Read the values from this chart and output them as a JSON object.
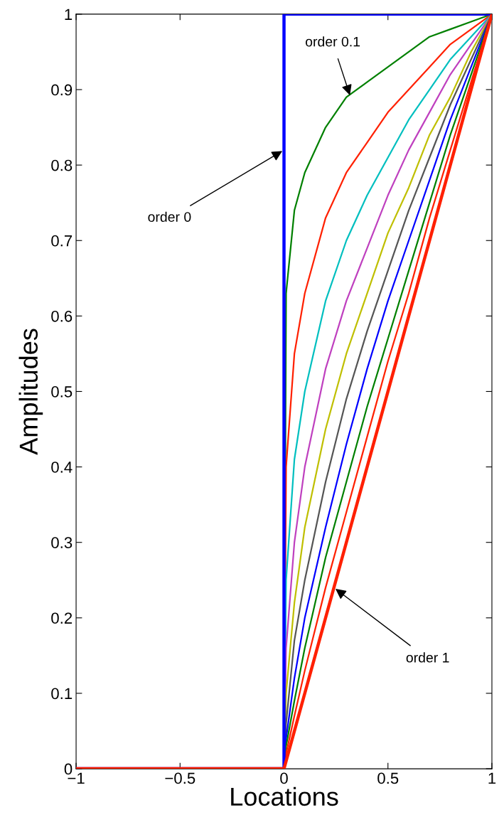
{
  "chart_data": {
    "type": "line",
    "xlabel": "Locations",
    "ylabel": "Amplitudes",
    "series": [
      {
        "color": "#0000ff",
        "x": [
          -1,
          0,
          0,
          1
        ],
        "values": [
          0,
          0,
          1,
          1
        ]
      },
      {
        "color": "#008000",
        "x": [
          -1,
          0,
          0.01,
          0.05,
          0.1,
          0.2,
          0.3,
          0.4,
          0.5,
          0.6,
          0.7,
          0.8,
          0.9,
          1
        ],
        "values": [
          0,
          0,
          0.63,
          0.74,
          0.79,
          0.85,
          0.89,
          0.91,
          0.93,
          0.95,
          0.97,
          0.98,
          0.99,
          1
        ]
      },
      {
        "color": "#ff2000",
        "x": [
          -1,
          0,
          0.01,
          0.05,
          0.1,
          0.2,
          0.3,
          0.4,
          0.5,
          0.6,
          0.7,
          0.8,
          0.9,
          1
        ],
        "values": [
          0,
          0,
          0.4,
          0.55,
          0.63,
          0.73,
          0.79,
          0.83,
          0.87,
          0.9,
          0.93,
          0.96,
          0.98,
          1
        ]
      },
      {
        "color": "#00bfbf",
        "x": [
          -1,
          0,
          0.01,
          0.05,
          0.1,
          0.2,
          0.3,
          0.4,
          0.5,
          0.6,
          0.7,
          0.8,
          0.9,
          1
        ],
        "values": [
          0,
          0,
          0.25,
          0.41,
          0.5,
          0.62,
          0.7,
          0.76,
          0.81,
          0.86,
          0.9,
          0.94,
          0.97,
          1
        ]
      },
      {
        "color": "#bf40bf",
        "x": [
          -1,
          0,
          0.01,
          0.05,
          0.1,
          0.2,
          0.3,
          0.4,
          0.5,
          0.6,
          0.7,
          0.8,
          0.9,
          1
        ],
        "values": [
          0,
          0,
          0.16,
          0.3,
          0.4,
          0.53,
          0.62,
          0.69,
          0.76,
          0.82,
          0.87,
          0.92,
          0.96,
          1
        ]
      },
      {
        "color": "#bfbf00",
        "x": [
          -1,
          0,
          0.01,
          0.05,
          0.1,
          0.2,
          0.3,
          0.4,
          0.5,
          0.6,
          0.7,
          0.8,
          0.9,
          1
        ],
        "values": [
          0,
          0,
          0.1,
          0.22,
          0.32,
          0.45,
          0.55,
          0.63,
          0.71,
          0.77,
          0.84,
          0.89,
          0.95,
          1
        ]
      },
      {
        "color": "#555555",
        "x": [
          -1,
          0,
          0.01,
          0.05,
          0.1,
          0.2,
          0.3,
          0.4,
          0.5,
          0.6,
          0.7,
          0.8,
          0.9,
          1
        ],
        "values": [
          0,
          0,
          0.06,
          0.17,
          0.25,
          0.38,
          0.49,
          0.58,
          0.66,
          0.74,
          0.81,
          0.88,
          0.94,
          1
        ]
      },
      {
        "color": "#0000ff",
        "x": [
          -1,
          0,
          0.01,
          0.05,
          0.1,
          0.2,
          0.3,
          0.4,
          0.5,
          0.6,
          0.7,
          0.8,
          0.9,
          1
        ],
        "values": [
          0,
          0,
          0.04,
          0.12,
          0.2,
          0.32,
          0.43,
          0.53,
          0.62,
          0.7,
          0.78,
          0.86,
          0.93,
          1
        ]
      },
      {
        "color": "#008000",
        "x": [
          -1,
          0,
          0.01,
          0.05,
          0.1,
          0.2,
          0.3,
          0.4,
          0.5,
          0.6,
          0.7,
          0.8,
          0.9,
          1
        ],
        "values": [
          0,
          0,
          0.03,
          0.09,
          0.16,
          0.28,
          0.38,
          0.48,
          0.57,
          0.66,
          0.75,
          0.84,
          0.92,
          1
        ]
      },
      {
        "color": "#ff2000",
        "x": [
          -1,
          0,
          0.01,
          0.05,
          0.1,
          0.2,
          0.3,
          0.4,
          0.5,
          0.6,
          0.7,
          0.8,
          0.9,
          1
        ],
        "values": [
          0,
          0,
          0.02,
          0.07,
          0.13,
          0.24,
          0.34,
          0.44,
          0.54,
          0.63,
          0.73,
          0.82,
          0.91,
          1
        ]
      },
      {
        "color": "#ff2000",
        "x": [
          -1,
          0,
          1
        ],
        "values": [
          0,
          0,
          1
        ]
      }
    ],
    "annotations": [
      {
        "text": "order 0.1",
        "x": 0.32,
        "y": 0.89
      },
      {
        "text": "order 0",
        "x": 0,
        "y": 0.82
      },
      {
        "text": "order 1",
        "x": 0.24,
        "y": 0.24
      }
    ],
    "xlim": [
      -1,
      1
    ],
    "ylim": [
      0,
      1
    ],
    "xticks": [
      {
        "value": -1,
        "label": "−1"
      },
      {
        "value": -0.5,
        "label": "−0.5"
      },
      0,
      0.5,
      1
    ],
    "yticks": [
      0,
      0.1,
      0.2,
      0.3,
      0.4,
      0.5,
      0.6,
      0.7,
      0.8,
      0.9,
      1
    ],
    "grid": false,
    "legend": false,
    "line_style": "solid",
    "marker": "none"
  }
}
